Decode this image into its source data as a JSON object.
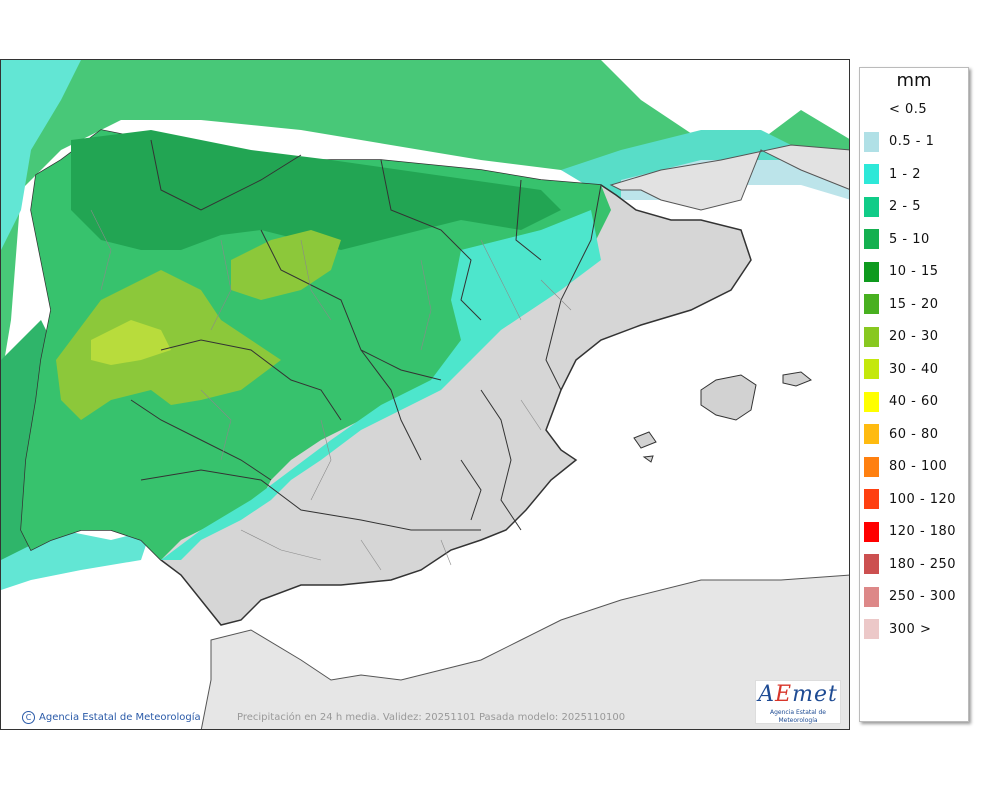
{
  "legend": {
    "title": "mm",
    "items": [
      {
        "label": "< 0.5",
        "color": "#ffffff"
      },
      {
        "label": "0.5 - 1",
        "color": "#b0e0e6"
      },
      {
        "label": "1 - 2",
        "color": "#2ee8d8"
      },
      {
        "label": "2 - 5",
        "color": "#10cc88"
      },
      {
        "label": "5 - 10",
        "color": "#14b050"
      },
      {
        "label": "10 - 15",
        "color": "#0e9a1e"
      },
      {
        "label": "15 - 20",
        "color": "#48b020"
      },
      {
        "label": "20 - 30",
        "color": "#88c820"
      },
      {
        "label": "30 - 40",
        "color": "#c4e80c"
      },
      {
        "label": "40 - 60",
        "color": "#ffff00"
      },
      {
        "label": "60 - 80",
        "color": "#ffbb10"
      },
      {
        "label": "80 - 100",
        "color": "#ff8010"
      },
      {
        "label": "100 - 120",
        "color": "#ff4010"
      },
      {
        "label": "120 - 180",
        "color": "#ff0000"
      },
      {
        "label": "180 - 250",
        "color": "#cc5050"
      },
      {
        "label": "250 - 300",
        "color": "#dd8888"
      },
      {
        "label": "300 >",
        "color": "#ecc8c8"
      }
    ]
  },
  "footer": {
    "agency": "Agencia Estatal de Meteorología",
    "copyright_symbol": "C",
    "caption": "Precipitación en 24 h media. Validez: 20251101 Pasada modelo: 2025110100"
  },
  "logo": {
    "mark_a": "A",
    "mark_e": "E",
    "mark_rest": "met",
    "subtitle": "Agencia Estatal de Meteorología"
  }
}
